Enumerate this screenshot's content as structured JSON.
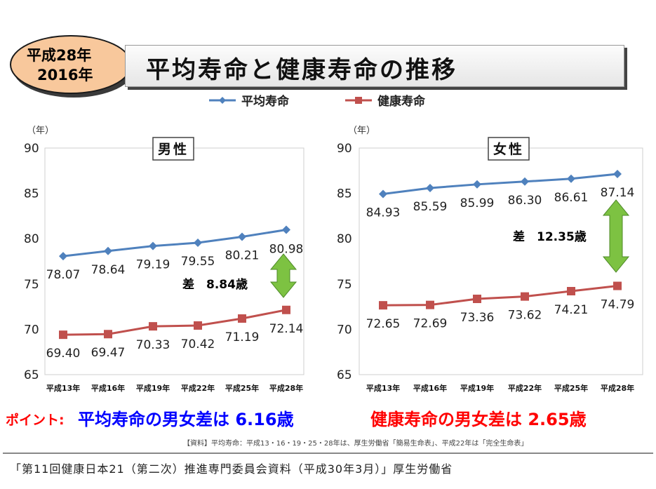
{
  "header": {
    "badge_line1": "平成28年",
    "badge_line2": "2016年",
    "title": "平均寿命と健康寿命の推移"
  },
  "legend": {
    "series1": "平均寿命",
    "series2": "健康寿命"
  },
  "colors": {
    "avg_life": "#4f81bd",
    "healthy_life": "#c0504d",
    "gap_arrow": "#7dc242",
    "point_label": "#ff0000",
    "point_blue": "#0000ff",
    "point_red": "#ff0000"
  },
  "chart_data": [
    {
      "type": "line",
      "title": "男性",
      "ylabel": "（年）",
      "ylim": [
        65,
        90
      ],
      "yticks": [
        65,
        70,
        75,
        80,
        85,
        90
      ],
      "categories": [
        "平成13年",
        "平成16年",
        "平成19年",
        "平成22年",
        "平成25年",
        "平成28年"
      ],
      "series": [
        {
          "name": "平均寿命",
          "values": [
            78.07,
            78.64,
            79.19,
            79.55,
            80.21,
            80.98
          ],
          "labels": [
            "78.07",
            "78.64",
            "79.19",
            "79.55",
            "80.21",
            "80.98"
          ]
        },
        {
          "name": "健康寿命",
          "values": [
            69.4,
            69.47,
            70.33,
            70.42,
            71.19,
            72.14
          ],
          "labels": [
            "69.40",
            "69.47",
            "70.33",
            "70.42",
            "71.19",
            "72.14"
          ]
        }
      ],
      "annotation": "差　8.84歳",
      "grid": false
    },
    {
      "type": "line",
      "title": "女性",
      "ylabel": "（年）",
      "ylim": [
        65,
        90
      ],
      "yticks": [
        65,
        70,
        75,
        80,
        85,
        90
      ],
      "categories": [
        "平成13年",
        "平成16年",
        "平成19年",
        "平成22年",
        "平成25年",
        "平成28年"
      ],
      "series": [
        {
          "name": "平均寿命",
          "values": [
            84.93,
            85.59,
            85.99,
            86.3,
            86.61,
            87.14
          ],
          "labels": [
            "84.93",
            "85.59",
            "85.99",
            "86.30",
            "86.61",
            "87.14"
          ]
        },
        {
          "name": "健康寿命",
          "values": [
            72.65,
            72.69,
            73.36,
            73.62,
            74.21,
            74.79
          ],
          "labels": [
            "72.65",
            "72.69",
            "73.36",
            "73.62",
            "74.21",
            "74.79"
          ]
        }
      ],
      "annotation": "差　12.35歳",
      "grid": false
    }
  ],
  "point": {
    "label": "ポイント:",
    "text_blue": "平均寿命の男女差は 6.16歳",
    "text_red": "健康寿命の男女差は 2.65歳"
  },
  "source_note": "【資料】平均寿命：平成13・16・19・25・28年は、厚生労働省「簡易生命表」、平成22年は「完全生命表」",
  "footer": "「第11回健康日本21（第二次）推進専門委員会資料（平成30年3月）」厚生労働省"
}
